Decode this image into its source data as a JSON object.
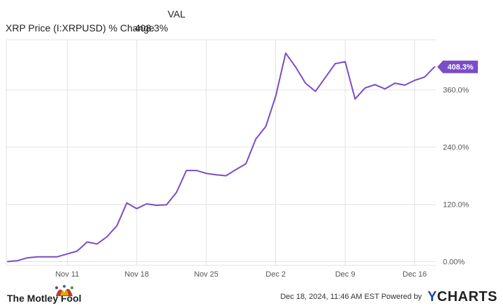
{
  "legend": {
    "header": "VAL",
    "series_name": "XRP Price (I:XRPUSD) % Change",
    "series_value": "408.3%"
  },
  "chart_data": {
    "type": "line",
    "x_tick_labels": [
      "Nov 11",
      "Nov 18",
      "Nov 25",
      "Dec 2",
      "Dec 9",
      "Dec 16"
    ],
    "y_tick_labels": [
      "0.00%",
      "120.0%",
      "240.0%",
      "360.0%"
    ],
    "y_ticks": [
      0,
      120,
      240,
      360
    ],
    "ylim": [
      -8,
      465
    ],
    "grid": true,
    "end_label": "408.3%",
    "series": [
      {
        "name": "XRP Price (I:XRPUSD) % Change",
        "color": "#7a4cc9",
        "x": [
          "Nov 5",
          "Nov 6",
          "Nov 7",
          "Nov 8",
          "Nov 9",
          "Nov 10",
          "Nov 11",
          "Nov 12",
          "Nov 13",
          "Nov 14",
          "Nov 15",
          "Nov 16",
          "Nov 17",
          "Nov 18",
          "Nov 19",
          "Nov 20",
          "Nov 21",
          "Nov 22",
          "Nov 23",
          "Nov 24",
          "Nov 25",
          "Nov 26",
          "Nov 27",
          "Nov 28",
          "Nov 29",
          "Nov 30",
          "Dec 1",
          "Dec 2",
          "Dec 3",
          "Dec 4",
          "Dec 5",
          "Dec 6",
          "Dec 7",
          "Dec 8",
          "Dec 9",
          "Dec 10",
          "Dec 11",
          "Dec 12",
          "Dec 13",
          "Dec 14",
          "Dec 15",
          "Dec 16",
          "Dec 17",
          "Dec 18"
        ],
        "values": [
          0,
          2,
          8,
          10,
          10,
          10,
          16,
          22,
          41,
          37,
          52,
          75,
          123,
          111,
          121,
          118,
          119,
          145,
          191,
          191,
          185,
          182,
          180,
          193,
          205,
          257,
          283,
          347,
          437,
          408,
          374,
          357,
          386,
          415,
          419,
          341,
          364,
          371,
          362,
          374,
          370,
          380,
          387,
          408.3
        ]
      }
    ]
  },
  "footer": {
    "brand": "The Motley Fool",
    "timestamp": "Dec 18, 2024, 11:46 AM EST  Powered by",
    "logo_y": "Y",
    "logo_rest": "CHARTS"
  },
  "colors": {
    "line": "#7a4cc9",
    "grid": "#e3e3e3",
    "axis_text": "#555555",
    "brand_blue": "#1c4fa3"
  },
  "icons": [
    "jester-hat-icon"
  ]
}
